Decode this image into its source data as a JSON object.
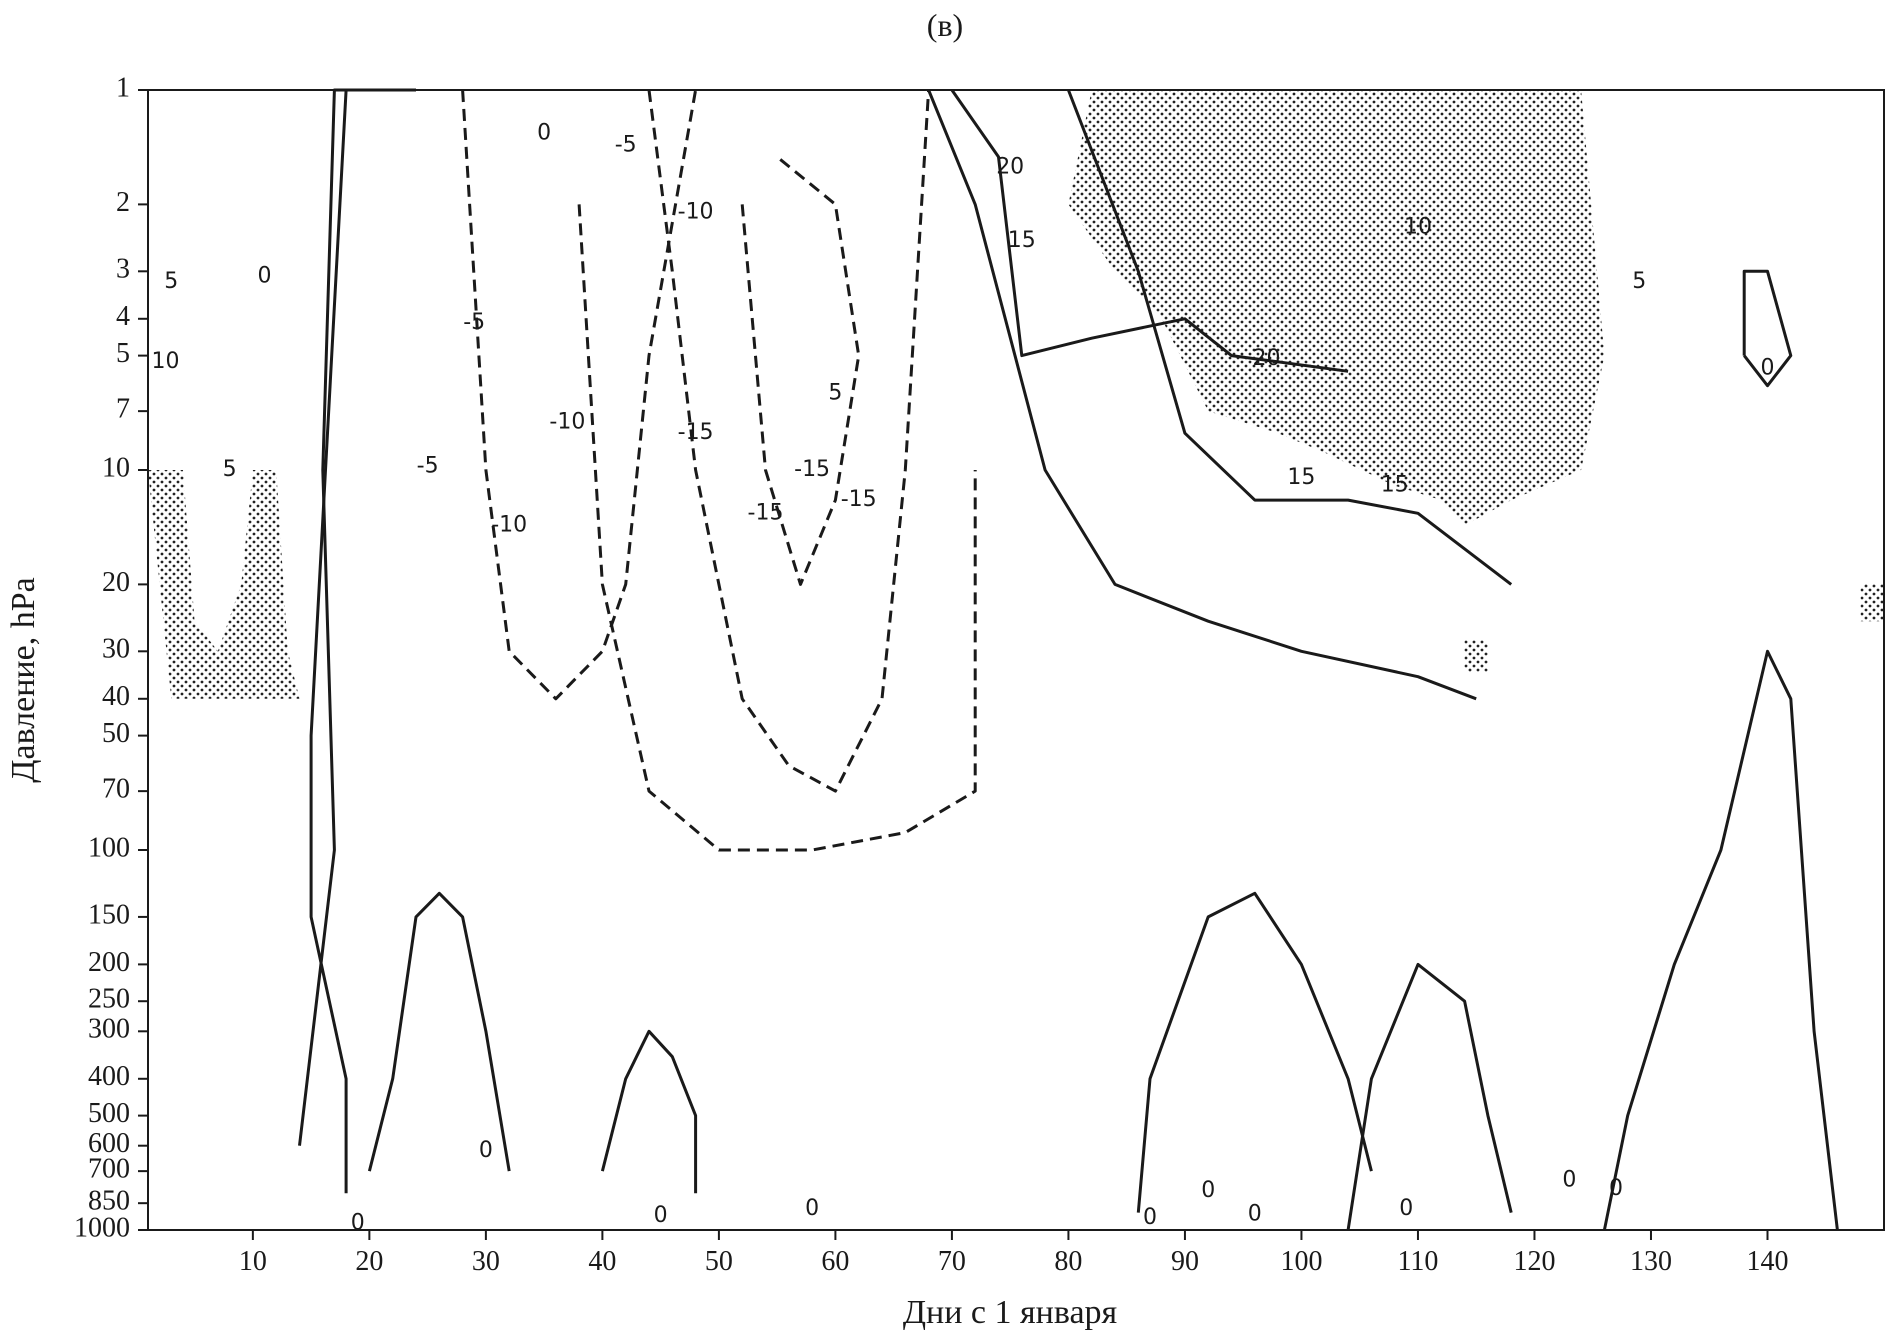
{
  "chart_data": {
    "type": "contour",
    "panel_label": "(в)",
    "title": "",
    "xlabel": "Дни с 1 января",
    "ylabel": "Давление, hPa",
    "xlim": [
      1,
      150
    ],
    "ylim": [
      1000,
      1
    ],
    "y_scale": "log",
    "x_ticks": [
      10,
      20,
      30,
      40,
      50,
      60,
      70,
      80,
      90,
      100,
      110,
      120,
      130,
      140
    ],
    "y_ticks": [
      1,
      2,
      3,
      4,
      5,
      7,
      10,
      20,
      30,
      40,
      50,
      70,
      100,
      150,
      200,
      250,
      300,
      400,
      500,
      600,
      700,
      850,
      1000
    ],
    "negative_contours_style": "dashed",
    "positive_contours_style": "solid",
    "stippling": "values above 20 shaded with dots",
    "contours": [
      {
        "name": "pos-a",
        "level": 5,
        "points": [
          [
            14,
            600
          ],
          [
            17,
            100
          ],
          [
            16,
            10
          ],
          [
            17,
            1
          ],
          [
            24,
            1
          ]
        ]
      },
      {
        "name": "pos-b",
        "level": 0,
        "points": [
          [
            18,
            800
          ],
          [
            18,
            400
          ],
          [
            15,
            150
          ],
          [
            15,
            50
          ],
          [
            18,
            1
          ]
        ]
      },
      {
        "name": "pos-c",
        "level": 5,
        "points": [
          [
            70,
            1
          ],
          [
            74,
            1.5
          ],
          [
            76,
            5
          ],
          [
            82,
            4.5
          ],
          [
            90,
            4
          ],
          [
            94,
            5
          ],
          [
            104,
            5.5
          ]
        ]
      },
      {
        "name": "pos-d",
        "level": 10,
        "points": [
          [
            68,
            1
          ],
          [
            72,
            2
          ],
          [
            78,
            10
          ],
          [
            84,
            20
          ],
          [
            92,
            25
          ],
          [
            100,
            30
          ],
          [
            110,
            35
          ],
          [
            115,
            40
          ]
        ]
      },
      {
        "name": "pos-e",
        "level": 15,
        "points": [
          [
            80,
            1
          ],
          [
            86,
            3
          ],
          [
            90,
            8
          ],
          [
            96,
            12
          ],
          [
            104,
            12
          ],
          [
            110,
            13
          ],
          [
            118,
            20
          ]
        ]
      },
      {
        "name": "neg-a",
        "level": -5,
        "points": [
          [
            28,
            1
          ],
          [
            30,
            10
          ],
          [
            32,
            30
          ],
          [
            36,
            40
          ],
          [
            40,
            30
          ],
          [
            42,
            20
          ],
          [
            44,
            5
          ],
          [
            48,
            1
          ]
        ]
      },
      {
        "name": "neg-b",
        "level": -10,
        "points": [
          [
            44,
            1
          ],
          [
            46,
            3
          ],
          [
            48,
            10
          ],
          [
            52,
            40
          ],
          [
            56,
            60
          ],
          [
            60,
            70
          ],
          [
            64,
            40
          ],
          [
            66,
            10
          ],
          [
            68,
            1
          ]
        ]
      },
      {
        "name": "neg-c",
        "level": -15,
        "points": [
          [
            52,
            2
          ],
          [
            54,
            10
          ],
          [
            57,
            20
          ],
          [
            60,
            12
          ],
          [
            62,
            5
          ],
          [
            60,
            2
          ],
          [
            55,
            1.5
          ]
        ]
      },
      {
        "name": "neg-d",
        "level": -5,
        "points": [
          [
            38,
            2
          ],
          [
            40,
            20
          ],
          [
            44,
            70
          ],
          [
            50,
            100
          ],
          [
            58,
            100
          ],
          [
            66,
            90
          ],
          [
            72,
            70
          ],
          [
            72,
            10
          ]
        ]
      },
      {
        "name": "low-a",
        "level": 0,
        "points": [
          [
            20,
            700
          ],
          [
            22,
            400
          ],
          [
            24,
            150
          ],
          [
            26,
            130
          ],
          [
            28,
            150
          ],
          [
            30,
            300
          ],
          [
            32,
            700
          ]
        ]
      },
      {
        "name": "low-b",
        "level": 0,
        "points": [
          [
            40,
            700
          ],
          [
            42,
            400
          ],
          [
            44,
            300
          ],
          [
            46,
            350
          ],
          [
            48,
            500
          ],
          [
            48,
            800
          ]
        ]
      },
      {
        "name": "low-c",
        "level": 0,
        "points": [
          [
            86,
            900
          ],
          [
            87,
            400
          ],
          [
            92,
            150
          ],
          [
            96,
            130
          ],
          [
            100,
            200
          ],
          [
            104,
            400
          ],
          [
            106,
            700
          ]
        ]
      },
      {
        "name": "low-d",
        "level": 0,
        "points": [
          [
            104,
            1000
          ],
          [
            106,
            400
          ],
          [
            110,
            200
          ],
          [
            114,
            250
          ],
          [
            116,
            500
          ],
          [
            118,
            900
          ]
        ]
      },
      {
        "name": "low-e",
        "level": 0,
        "points": [
          [
            126,
            1000
          ],
          [
            128,
            500
          ],
          [
            132,
            200
          ],
          [
            136,
            100
          ],
          [
            140,
            30
          ],
          [
            142,
            40
          ],
          [
            144,
            300
          ],
          [
            146,
            1000
          ]
        ]
      },
      {
        "name": "upper-right",
        "level": 0,
        "points": [
          [
            138,
            5
          ],
          [
            138,
            3
          ],
          [
            140,
            3
          ],
          [
            142,
            5
          ],
          [
            140,
            6
          ],
          [
            138,
            5
          ]
        ]
      }
    ],
    "contour_labels": [
      {
        "text": "0",
        "x": 35,
        "y": 1.3
      },
      {
        "text": "-5",
        "x": 42,
        "y": 1.4
      },
      {
        "text": "-10",
        "x": 48,
        "y": 2.1
      },
      {
        "text": "-15",
        "x": 48,
        "y": 8
      },
      {
        "text": "-15",
        "x": 54,
        "y": 13
      },
      {
        "text": "-10",
        "x": 37,
        "y": 7.5
      },
      {
        "text": "-5",
        "x": 29,
        "y": 4.1
      },
      {
        "text": "-5",
        "x": 25,
        "y": 9.8
      },
      {
        "text": "-10",
        "x": 32,
        "y": 14
      },
      {
        "text": "-15",
        "x": 58,
        "y": 10
      },
      {
        "text": "-15",
        "x": 62,
        "y": 12
      },
      {
        "text": "5",
        "x": 60,
        "y": 6.3
      },
      {
        "text": "5",
        "x": 3,
        "y": 3.2
      },
      {
        "text": "10",
        "x": 2.5,
        "y": 5.2
      },
      {
        "text": "5",
        "x": 8,
        "y": 10
      },
      {
        "text": "0",
        "x": 11,
        "y": 3.1
      },
      {
        "text": "20",
        "x": 75,
        "y": 1.6
      },
      {
        "text": "15",
        "x": 76,
        "y": 2.5
      },
      {
        "text": "10",
        "x": 110,
        "y": 2.3
      },
      {
        "text": "5",
        "x": 129,
        "y": 3.2
      },
      {
        "text": "20",
        "x": 97,
        "y": 5.1
      },
      {
        "text": "15",
        "x": 100,
        "y": 10.5
      },
      {
        "text": "15",
        "x": 108,
        "y": 11
      },
      {
        "text": "0",
        "x": 140,
        "y": 5.4
      },
      {
        "text": "0",
        "x": 30,
        "y": 620
      },
      {
        "text": "0",
        "x": 19,
        "y": 960
      },
      {
        "text": "0",
        "x": 45,
        "y": 920
      },
      {
        "text": "0",
        "x": 58,
        "y": 880
      },
      {
        "text": "0",
        "x": 87,
        "y": 930
      },
      {
        "text": "0",
        "x": 92,
        "y": 790
      },
      {
        "text": "0",
        "x": 96,
        "y": 910
      },
      {
        "text": "0",
        "x": 109,
        "y": 880
      },
      {
        "text": "0",
        "x": 123,
        "y": 740
      },
      {
        "text": "0",
        "x": 127,
        "y": 780
      }
    ],
    "stipple_regions": [
      {
        "name": "upper-right-stipple",
        "points": [
          [
            82,
            1
          ],
          [
            124,
            1
          ],
          [
            126,
            5
          ],
          [
            124,
            10
          ],
          [
            118,
            12
          ],
          [
            114,
            14
          ],
          [
            112,
            12
          ],
          [
            108,
            11
          ],
          [
            102,
            9
          ],
          [
            98,
            8
          ],
          [
            92,
            7
          ],
          [
            88,
            4
          ],
          [
            84,
            3
          ],
          [
            80,
            2
          ]
        ]
      },
      {
        "name": "left-stipple",
        "points": [
          [
            1,
            10
          ],
          [
            4,
            10
          ],
          [
            5,
            25
          ],
          [
            7,
            30
          ],
          [
            9,
            20
          ],
          [
            10,
            10
          ],
          [
            12,
            10
          ],
          [
            13,
            30
          ],
          [
            14,
            40
          ],
          [
            3,
            40
          ]
        ]
      },
      {
        "name": "mid-small",
        "points": [
          [
            114,
            28
          ],
          [
            116,
            28
          ],
          [
            116,
            34
          ],
          [
            114,
            34
          ]
        ]
      },
      {
        "name": "edge-small",
        "points": [
          [
            148,
            20
          ],
          [
            150,
            20
          ],
          [
            150,
            25
          ],
          [
            148,
            25
          ]
        ]
      }
    ]
  }
}
